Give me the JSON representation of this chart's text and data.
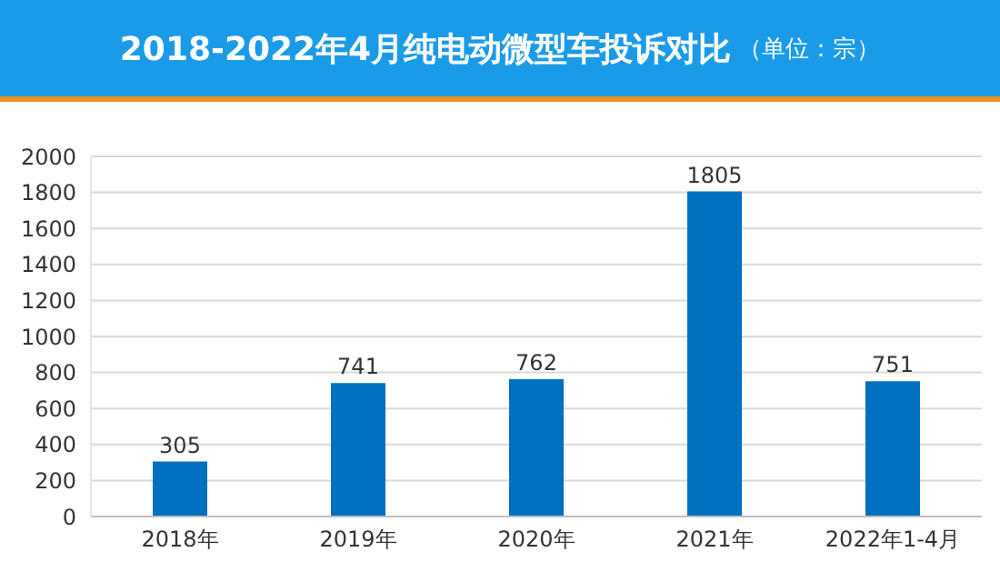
{
  "chart_data": {
    "type": "bar",
    "title": "2018-2022年4月纯电动微型车投诉对比",
    "subtitle": "（单位：宗）",
    "categories": [
      "2018年",
      "2019年",
      "2020年",
      "2021年",
      "2022年1-4月"
    ],
    "values": [
      305,
      741,
      762,
      1805,
      751
    ],
    "color": "#0070c0",
    "ylim": [
      0,
      2000
    ],
    "yticks": [
      0,
      200,
      400,
      600,
      800,
      1000,
      1200,
      1400,
      1600,
      1800,
      2000
    ],
    "grid": "y",
    "data_labels": true
  }
}
